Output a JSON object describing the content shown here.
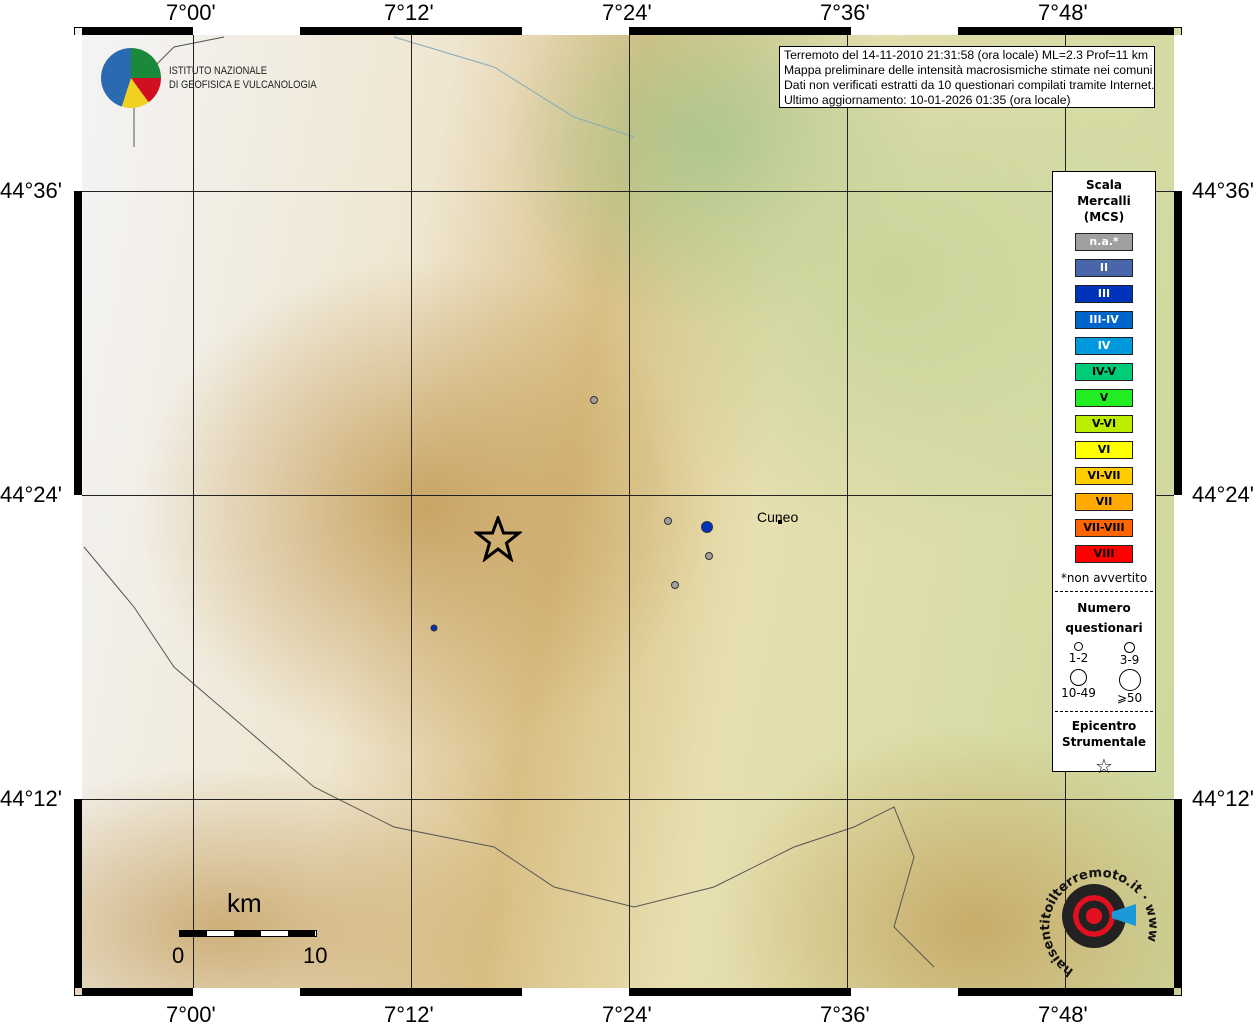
{
  "axes": {
    "lon": [
      "7°00'",
      "7°12'",
      "7°24'",
      "7°36'",
      "7°48'"
    ],
    "lat": [
      "44°36'",
      "44°24'",
      "44°12'"
    ]
  },
  "logo": {
    "line1": "ISTITUTO NAZIONALE",
    "line2": "DI GEOFISICA E VULCANOLOGIA"
  },
  "info": [
    "Terremoto del 14-11-2010 21:31:58 (ora locale) ML=2.3 Prof=11 km",
    "Mappa preliminare delle intensità macrosismiche stimate nei comuni",
    "Dati non verificati estratti da 10 questionari compilati tramite Internet.",
    "Ultimo aggiornamento: 10-01-2026 01:35 (ora locale)"
  ],
  "legend": {
    "title": [
      "Scala",
      "Mercalli",
      "(MCS)"
    ],
    "scale": [
      {
        "label": "n.a.*",
        "color": "#a0a0a0",
        "text": "#fff"
      },
      {
        "label": "II",
        "color": "#4a66aa",
        "text": "#fff"
      },
      {
        "label": "III",
        "color": "#0033bb",
        "text": "#fff"
      },
      {
        "label": "III-IV",
        "color": "#0066cc",
        "text": "#fff"
      },
      {
        "label": "IV",
        "color": "#0099dd",
        "text": "#fff"
      },
      {
        "label": "IV-V",
        "color": "#00cc77",
        "text": "#000"
      },
      {
        "label": "V",
        "color": "#22ee22",
        "text": "#000"
      },
      {
        "label": "V-VI",
        "color": "#bbee00",
        "text": "#000"
      },
      {
        "label": "VI",
        "color": "#ffff00",
        "text": "#000"
      },
      {
        "label": "VI-VII",
        "color": "#ffcc00",
        "text": "#000"
      },
      {
        "label": "VII",
        "color": "#ffaa00",
        "text": "#000"
      },
      {
        "label": "VII-VIII",
        "color": "#ff6600",
        "text": "#000"
      },
      {
        "label": "VIII",
        "color": "#ff0000",
        "text": "#000"
      }
    ],
    "note": "*non avvertito",
    "count_title": [
      "Numero",
      "questionari"
    ],
    "counts": [
      "1-2",
      "3-9",
      "10-49",
      "⩾50"
    ],
    "epi_title": [
      "Epicentro",
      "Strumentale"
    ]
  },
  "places": [
    {
      "name": "Cuneo"
    }
  ],
  "observations": [
    {
      "intensity": "n.a.*",
      "color": "#a0a0a0"
    },
    {
      "intensity": "n.a.*",
      "color": "#a0a0a0"
    },
    {
      "intensity": "n.a.*",
      "color": "#a0a0a0"
    },
    {
      "intensity": "n.a.*",
      "color": "#a0a0a0"
    },
    {
      "intensity": "III",
      "color": "#0033bb"
    },
    {
      "intensity": "III",
      "color": "#0033bb"
    }
  ],
  "scalebar": {
    "unit": "km",
    "min": "0",
    "max": "10"
  },
  "badge": "haisentitoilterremoto.it · www"
}
